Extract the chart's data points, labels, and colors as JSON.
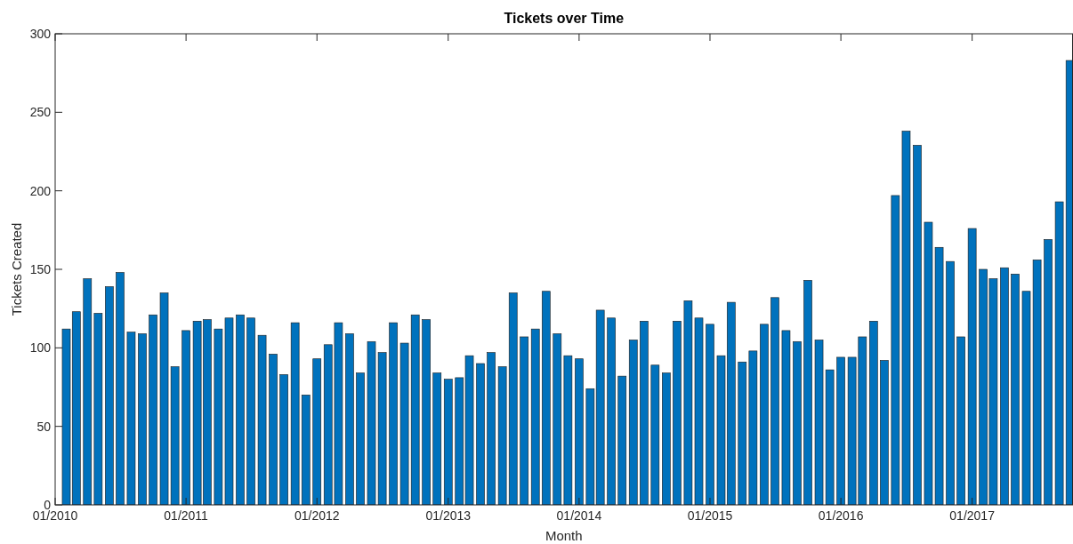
{
  "chart_data": {
    "type": "bar",
    "title": "Tickets over Time",
    "xlabel": "Month",
    "ylabel": "Tickets Created",
    "color": "#0072bd",
    "x": [
      "2010-02",
      "2010-03",
      "2010-04",
      "2010-05",
      "2010-06",
      "2010-07",
      "2010-08",
      "2010-09",
      "2010-10",
      "2010-11",
      "2010-12",
      "2011-01",
      "2011-02",
      "2011-03",
      "2011-04",
      "2011-05",
      "2011-06",
      "2011-07",
      "2011-08",
      "2011-09",
      "2011-10",
      "2011-11",
      "2011-12",
      "2012-01",
      "2012-02",
      "2012-03",
      "2012-04",
      "2012-05",
      "2012-06",
      "2012-07",
      "2012-08",
      "2012-09",
      "2012-10",
      "2012-11",
      "2012-12",
      "2013-01",
      "2013-02",
      "2013-03",
      "2013-04",
      "2013-05",
      "2013-06",
      "2013-07",
      "2013-08",
      "2013-09",
      "2013-10",
      "2013-11",
      "2013-12",
      "2014-01",
      "2014-02",
      "2014-03",
      "2014-04",
      "2014-05",
      "2014-06",
      "2014-07",
      "2014-08",
      "2014-09",
      "2014-10",
      "2014-11",
      "2014-12",
      "2015-01",
      "2015-02",
      "2015-03",
      "2015-04",
      "2015-05",
      "2015-06",
      "2015-07",
      "2015-08",
      "2015-09",
      "2015-10",
      "2015-11",
      "2015-12",
      "2016-01",
      "2016-02",
      "2016-03",
      "2016-04",
      "2016-05",
      "2016-06",
      "2016-07",
      "2016-08",
      "2016-09",
      "2016-10",
      "2016-11",
      "2016-12",
      "2017-01",
      "2017-02",
      "2017-03",
      "2017-04",
      "2017-05",
      "2017-06",
      "2017-07",
      "2017-08",
      "2017-09",
      "2017-10"
    ],
    "values": [
      112,
      123,
      144,
      122,
      139,
      148,
      110,
      109,
      121,
      135,
      88,
      111,
      117,
      118,
      112,
      119,
      121,
      119,
      108,
      96,
      83,
      116,
      70,
      93,
      102,
      116,
      109,
      84,
      104,
      97,
      116,
      103,
      121,
      118,
      84,
      80,
      81,
      95,
      90,
      97,
      88,
      135,
      107,
      112,
      136,
      109,
      95,
      93,
      74,
      124,
      119,
      82,
      105,
      117,
      89,
      84,
      117,
      130,
      119,
      115,
      95,
      129,
      91,
      98,
      115,
      132,
      111,
      104,
      143,
      105,
      86,
      94,
      94,
      107,
      117,
      92,
      197,
      238,
      229,
      180,
      164,
      155,
      107,
      176,
      150,
      144,
      151,
      147,
      136,
      156,
      169,
      193,
      283
    ],
    "xlim": [
      "2010-01-01",
      "2017-10-08"
    ],
    "xticks": [
      {
        "value": "2010-01-01",
        "label": "01/2010"
      },
      {
        "value": "2011-01-01",
        "label": "01/2011"
      },
      {
        "value": "2012-01-01",
        "label": "01/2012"
      },
      {
        "value": "2013-01-01",
        "label": "01/2013"
      },
      {
        "value": "2014-01-01",
        "label": "01/2014"
      },
      {
        "value": "2015-01-01",
        "label": "01/2015"
      },
      {
        "value": "2016-01-01",
        "label": "01/2016"
      },
      {
        "value": "2017-01-01",
        "label": "01/2017"
      }
    ],
    "ylim": [
      0,
      300
    ],
    "yticks": [
      0,
      50,
      100,
      150,
      200,
      250,
      300
    ]
  }
}
